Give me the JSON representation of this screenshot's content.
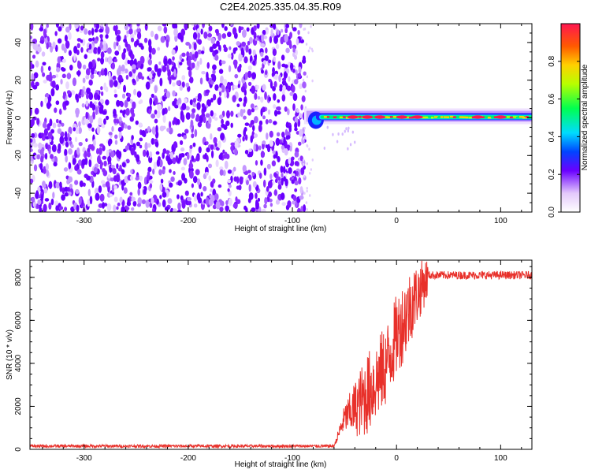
{
  "title": "C2E4.2025.335.04.35.R09",
  "chart_data": [
    {
      "type": "heatmap",
      "name": "spectrogram",
      "xlabel": "Height of straight line (km)",
      "ylabel": "Frequency (Hz)",
      "xlim": [
        -352,
        130
      ],
      "ylim": [
        -50,
        50
      ],
      "x_ticks": [
        -300,
        -200,
        -100,
        0,
        100
      ],
      "y_ticks": [
        -40,
        -20,
        0,
        20,
        40
      ],
      "noise_region_x": [
        -352,
        -85
      ],
      "signal_start_x": -85,
      "signal_line_freq": 0,
      "colorbar": {
        "label": "Normalized spectral amplitude",
        "range": [
          0,
          1
        ],
        "ticks": [
          0.0,
          0.2,
          0.4,
          0.6,
          0.8
        ]
      }
    },
    {
      "type": "line",
      "name": "snr",
      "xlabel": "Height of straight line (km)",
      "ylabel": "SNR (10 * v/v)",
      "xlim": [
        -352,
        130
      ],
      "ylim": [
        0,
        8800
      ],
      "x_ticks": [
        -300,
        -200,
        -100,
        0,
        100
      ],
      "y_ticks": [
        0,
        2000,
        4000,
        6000,
        8000
      ],
      "color": "#e8302a",
      "profile": [
        {
          "x": -352,
          "y": 150
        },
        {
          "x": -60,
          "y": 150
        },
        {
          "x": -50,
          "y": 1500
        },
        {
          "x": -35,
          "y": 2300
        },
        {
          "x": -25,
          "y": 3000
        },
        {
          "x": -10,
          "y": 4100
        },
        {
          "x": 0,
          "y": 5500
        },
        {
          "x": 15,
          "y": 7000
        },
        {
          "x": 30,
          "y": 8100
        },
        {
          "x": 130,
          "y": 8100
        }
      ]
    }
  ]
}
